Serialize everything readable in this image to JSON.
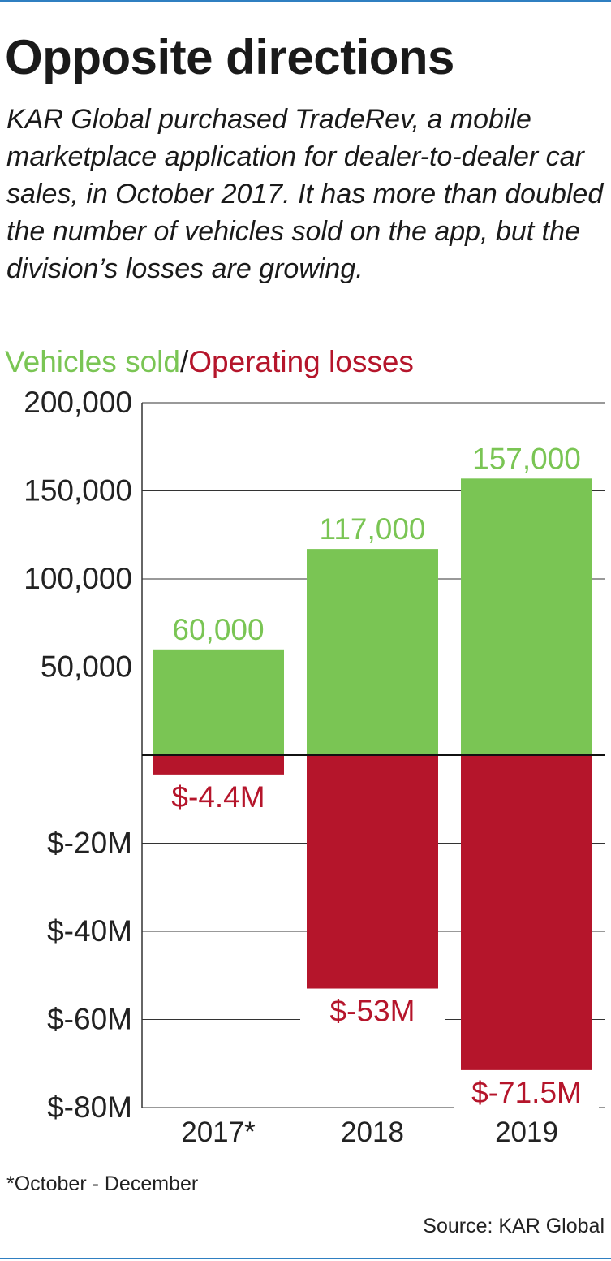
{
  "header": {
    "title": "Opposite directions",
    "subtitle": "KAR Global purchased TradeRev, a mobile marketplace application for dealer-to-dealer car sales, in October 2017. It has more than doubled the number of vehicles sold on the app, but the division’s losses are growing."
  },
  "legend": {
    "vehicles_label": "Vehicles sold",
    "separator": "/",
    "losses_label": "Operating losses"
  },
  "colors": {
    "vehicles": "#7ac554",
    "losses": "#b5152b",
    "rule": "#2f7fc1"
  },
  "chart_data": {
    "type": "bar",
    "categories": [
      "2017*",
      "2018",
      "2019"
    ],
    "series": [
      {
        "name": "Vehicles sold",
        "values": [
          60000,
          117000,
          157000
        ],
        "labels": [
          "60,000",
          "117,000",
          "157,000"
        ],
        "ylim": [
          0,
          200000
        ]
      },
      {
        "name": "Operating losses",
        "values": [
          -4.4,
          -53,
          -71.5
        ],
        "unit": "$M",
        "labels": [
          "$-4.4M",
          "$-53M",
          "$-71.5M"
        ],
        "ylim": [
          -80,
          0
        ]
      }
    ],
    "upper_ticks": [
      {
        "value": 200000,
        "label": "200,000"
      },
      {
        "value": 150000,
        "label": "150,000"
      },
      {
        "value": 100000,
        "label": "100,000"
      },
      {
        "value": 50000,
        "label": "50,000"
      }
    ],
    "lower_ticks": [
      {
        "value": -20,
        "label": "$-20M"
      },
      {
        "value": -40,
        "label": "$-40M"
      },
      {
        "value": -60,
        "label": "$-60M"
      },
      {
        "value": -80,
        "label": "$-80M"
      }
    ],
    "grid": true
  },
  "footer": {
    "footnote": "*October - December",
    "source": "Source: KAR Global"
  }
}
